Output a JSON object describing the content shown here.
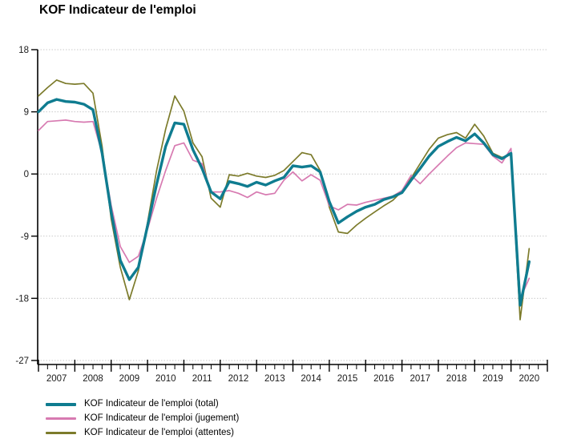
{
  "title": "KOF Indicateur de l'emploi",
  "chart_data": {
    "type": "line",
    "title": "KOF Indicateur de l'emploi",
    "x_frequency": "quarterly",
    "x_start": "2007Q1",
    "x_end": "2020Q3",
    "xlabel": "",
    "ylabel": "",
    "ylim": [
      -27,
      18
    ],
    "yticks": [
      18,
      9,
      0,
      -9,
      -18,
      -27
    ],
    "grid": "horizontal-dotted",
    "legend_position": "bottom-left",
    "x_tick_years": [
      "2007",
      "2008",
      "2009",
      "2010",
      "2011",
      "2012",
      "2013",
      "2014",
      "2015",
      "2016",
      "2017",
      "2018",
      "2019",
      "2020"
    ],
    "series": [
      {
        "name": "KOF Indicateur de l'emploi (total)",
        "color": "#0f7c90",
        "stroke_width": 3.4,
        "values": [
          9.0,
          10.3,
          10.8,
          10.5,
          10.4,
          10.1,
          9.3,
          3.0,
          -5.5,
          -12.5,
          -15.3,
          -13.5,
          -7.5,
          -1.5,
          4.0,
          7.4,
          7.2,
          3.5,
          0.8,
          -2.6,
          -3.6,
          -1.1,
          -1.4,
          -1.8,
          -1.2,
          -1.6,
          -1.0,
          -0.5,
          1.2,
          1.0,
          1.2,
          0.3,
          -4.0,
          -7.1,
          -6.2,
          -5.4,
          -4.8,
          -4.4,
          -3.7,
          -3.3,
          -2.7,
          -0.9,
          0.8,
          2.6,
          4.0,
          4.7,
          5.3,
          4.8,
          5.8,
          4.5,
          2.8,
          2.2,
          3.0,
          -19.0,
          -12.7
        ]
      },
      {
        "name": "KOF Indicateur de l'emploi (jugement)",
        "color": "#d77ab1",
        "stroke_width": 1.7,
        "values": [
          6.3,
          7.6,
          7.7,
          7.8,
          7.6,
          7.5,
          7.6,
          3.0,
          -4.5,
          -10.5,
          -12.8,
          -11.9,
          -8.0,
          -3.5,
          0.5,
          4.1,
          4.5,
          2.0,
          1.5,
          -2.6,
          -2.6,
          -2.4,
          -2.8,
          -3.4,
          -2.6,
          -3.0,
          -2.8,
          -0.9,
          0.3,
          -1.0,
          -0.1,
          -0.9,
          -4.6,
          -5.2,
          -4.4,
          -4.5,
          -4.1,
          -3.8,
          -3.5,
          -3.2,
          -2.4,
          -0.2,
          -1.4,
          0.0,
          1.3,
          2.6,
          3.8,
          4.5,
          4.4,
          4.3,
          2.6,
          1.6,
          3.7,
          -18.1,
          -15.1
        ]
      },
      {
        "name": "KOF Indicateur de l'emploi (attentes)",
        "color": "#7c7b2b",
        "stroke_width": 1.7,
        "values": [
          11.3,
          12.5,
          13.6,
          13.1,
          13.0,
          13.1,
          11.7,
          4.0,
          -6.5,
          -13.5,
          -18.2,
          -14.0,
          -7.0,
          0.5,
          6.5,
          11.3,
          9.1,
          4.5,
          2.5,
          -3.5,
          -4.8,
          -0.1,
          -0.3,
          0.1,
          -0.3,
          -0.5,
          -0.2,
          0.5,
          1.8,
          3.1,
          2.8,
          0.5,
          -4.8,
          -8.4,
          -8.6,
          -7.4,
          -6.4,
          -5.5,
          -4.6,
          -3.8,
          -2.5,
          -0.6,
          1.5,
          3.6,
          5.2,
          5.7,
          6.0,
          5.2,
          7.2,
          5.5,
          3.0,
          2.4,
          2.8,
          -21.1,
          -10.8
        ]
      }
    ],
    "colors": {
      "grid": "#c9c9c9",
      "axis": "#000000",
      "background": "#ffffff"
    }
  }
}
